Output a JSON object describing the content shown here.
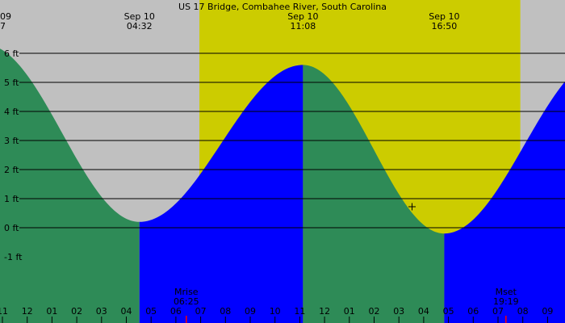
{
  "chart_data": {
    "type": "area",
    "title": "US 17 Bridge, Combahee River, South Carolina",
    "xlabel": "",
    "ylabel": "",
    "ylim": [
      -2.3,
      6
    ],
    "x_unit": "hour of day",
    "xlim": [
      22.9,
      32.1
    ],
    "y_ticks": [
      {
        "value": 6,
        "label": "6 ft"
      },
      {
        "value": 5,
        "label": "5 ft"
      },
      {
        "value": 4,
        "label": "4 ft"
      },
      {
        "value": 3,
        "label": "3 ft"
      },
      {
        "value": 2,
        "label": "2 ft"
      },
      {
        "value": 1,
        "label": "1 ft"
      },
      {
        "value": 0,
        "label": "0 ft"
      },
      {
        "value": -1,
        "label": "-1 ft"
      }
    ],
    "x_ticks": [
      {
        "value": 23,
        "label": "11"
      },
      {
        "value": 24,
        "label": "12"
      },
      {
        "value": 25,
        "label": "01"
      },
      {
        "value": 26,
        "label": "02"
      },
      {
        "value": 27,
        "label": "03"
      },
      {
        "value": 28,
        "label": "04"
      },
      {
        "value": 29,
        "label": "05"
      },
      {
        "value": 30,
        "label": "06"
      },
      {
        "value": 31,
        "label": "07"
      },
      {
        "value": 32,
        "label": "08"
      },
      {
        "value": 33,
        "label": "09"
      },
      {
        "value": 34,
        "label": "10"
      },
      {
        "value": 35,
        "label": "11"
      },
      {
        "value": 36,
        "label": "12"
      },
      {
        "value": 37,
        "label": "01"
      },
      {
        "value": 38,
        "label": "02"
      },
      {
        "value": 39,
        "label": "03"
      },
      {
        "value": 40,
        "label": "04"
      },
      {
        "value": 41,
        "label": "05"
      },
      {
        "value": 42,
        "label": "06"
      },
      {
        "value": 43,
        "label": "07"
      },
      {
        "value": 44,
        "label": "08"
      },
      {
        "value": 45,
        "label": "09"
      }
    ],
    "tide_extremes": [
      {
        "time": 22.3,
        "height": 6.3,
        "kind": "high"
      },
      {
        "time": 28.53,
        "height": 0.2,
        "kind": "low",
        "date_label": "Sep 10",
        "time_label": "04:32"
      },
      {
        "time": 35.13,
        "height": 5.6,
        "kind": "high",
        "date_label": "Sep 10",
        "time_label": "11:08"
      },
      {
        "time": 40.83,
        "height": -0.2,
        "kind": "low",
        "date_label": "Sep 10",
        "time_label": "16:50"
      },
      {
        "time": 47.3,
        "height": 5.9,
        "kind": "high"
      }
    ],
    "partial_left_label": {
      "date_label": "09",
      "time_label": "7"
    },
    "daylight": {
      "start": 30.95,
      "end": 43.9
    },
    "moon_events": [
      {
        "name": "Mrise",
        "time_label": "06:25",
        "time": 30.42
      },
      {
        "name": "Mset",
        "time_label": "19:19",
        "time": 43.32
      }
    ],
    "colors": {
      "night": "#c0c0c0",
      "day": "#cccc00",
      "falling": "#2e8b57",
      "rising": "#0000ff",
      "grid": "#000000",
      "moon_tick": "#ff0000"
    }
  }
}
